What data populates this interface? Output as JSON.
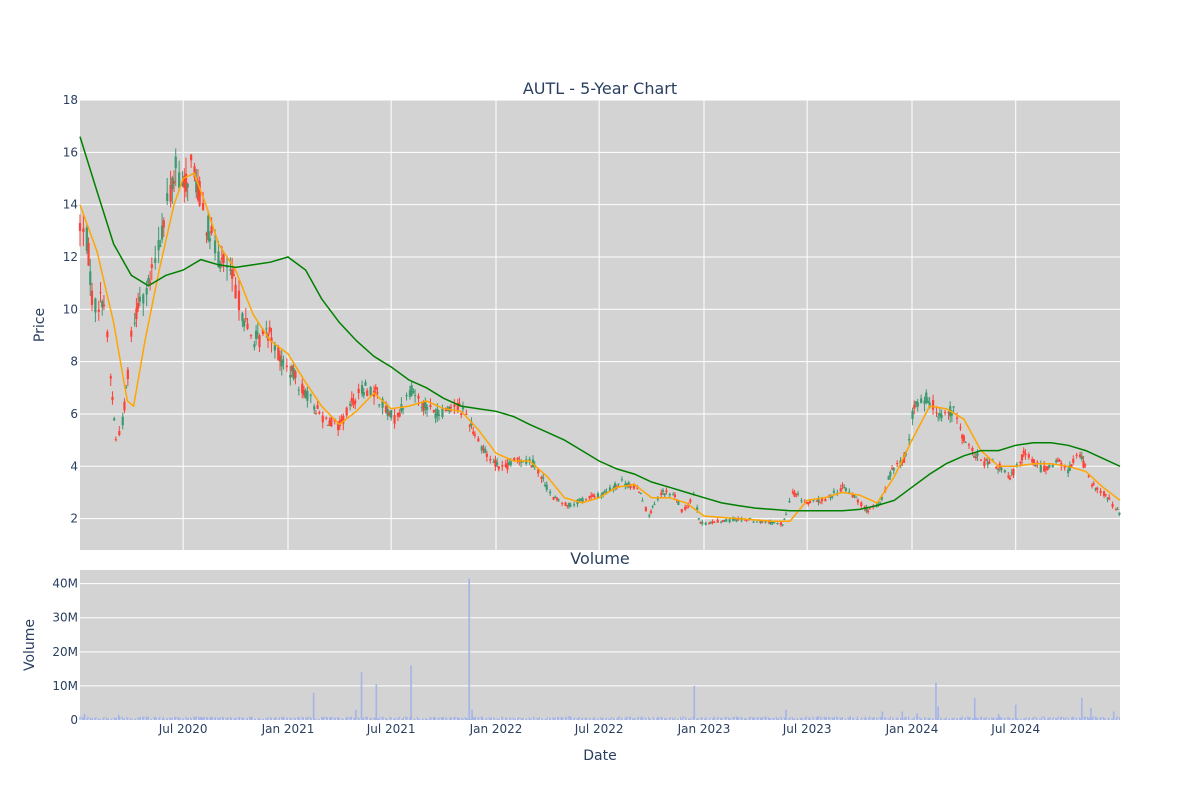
{
  "chart_data": [
    {
      "type": "candlestick",
      "title": "AUTL - 5-Year Chart",
      "ylabel": "Price",
      "ylim": [
        0.8,
        18
      ],
      "yticks": [
        2,
        4,
        6,
        8,
        10,
        12,
        14,
        16,
        18
      ],
      "xlim": [
        "2020-01-02",
        "2024-12-31"
      ],
      "grid": true,
      "colors": {
        "background": "#d3d3d3",
        "up": "#3d9970",
        "down": "#ff4136",
        "ma_short": "#ffa500",
        "ma_long": "#008000"
      },
      "price_path": [
        [
          "2020-01-02",
          13.2
        ],
        [
          "2020-01-15",
          12.6
        ],
        [
          "2020-01-25",
          10.0
        ],
        [
          "2020-02-12",
          10.5
        ],
        [
          "2020-02-22",
          8.2
        ],
        [
          "2020-03-05",
          5.0
        ],
        [
          "2020-03-18",
          5.8
        ],
        [
          "2020-04-01",
          9.0
        ],
        [
          "2020-04-15",
          10.5
        ],
        [
          "2020-05-01",
          10.8
        ],
        [
          "2020-05-20",
          12.5
        ],
        [
          "2020-06-05",
          14.2
        ],
        [
          "2020-06-20",
          15.5
        ],
        [
          "2020-07-01",
          14.5
        ],
        [
          "2020-07-15",
          15.6
        ],
        [
          "2020-08-01",
          14.2
        ],
        [
          "2020-08-15",
          13.0
        ],
        [
          "2020-09-01",
          12.0
        ],
        [
          "2020-09-20",
          11.5
        ],
        [
          "2020-10-05",
          10.5
        ],
        [
          "2020-10-25",
          9.0
        ],
        [
          "2020-11-10",
          8.8
        ],
        [
          "2020-12-01",
          9.2
        ],
        [
          "2020-12-20",
          8.0
        ],
        [
          "2021-01-10",
          7.5
        ],
        [
          "2021-02-01",
          6.8
        ],
        [
          "2021-03-01",
          5.9
        ],
        [
          "2021-04-01",
          5.5
        ],
        [
          "2021-04-25",
          6.5
        ],
        [
          "2021-05-15",
          7.0
        ],
        [
          "2021-06-05",
          6.8
        ],
        [
          "2021-06-25",
          6.0
        ],
        [
          "2021-07-10",
          5.8
        ],
        [
          "2021-08-05",
          7.0
        ],
        [
          "2021-08-25",
          6.4
        ],
        [
          "2021-09-20",
          6.0
        ],
        [
          "2021-10-20",
          6.4
        ],
        [
          "2021-11-10",
          6.0
        ],
        [
          "2021-12-01",
          5.0
        ],
        [
          "2021-12-20",
          4.3
        ],
        [
          "2022-01-15",
          3.9
        ],
        [
          "2022-02-10",
          4.3
        ],
        [
          "2022-03-10",
          4.1
        ],
        [
          "2022-04-10",
          2.8
        ],
        [
          "2022-05-10",
          2.5
        ],
        [
          "2022-06-10",
          2.8
        ],
        [
          "2022-07-05",
          2.9
        ],
        [
          "2022-08-10",
          3.4
        ],
        [
          "2022-09-10",
          3.1
        ],
        [
          "2022-09-25",
          2.1
        ],
        [
          "2022-10-20",
          3.0
        ],
        [
          "2022-11-10",
          2.9
        ],
        [
          "2022-11-25",
          2.2
        ],
        [
          "2022-12-15",
          3.0
        ],
        [
          "2022-12-25",
          1.8
        ],
        [
          "2023-02-01",
          1.9
        ],
        [
          "2023-03-10",
          2.0
        ],
        [
          "2023-04-10",
          1.9
        ],
        [
          "2023-05-20",
          1.8
        ],
        [
          "2023-06-05",
          3.0
        ],
        [
          "2023-07-01",
          2.6
        ],
        [
          "2023-08-01",
          2.7
        ],
        [
          "2023-09-01",
          3.2
        ],
        [
          "2023-09-25",
          2.8
        ],
        [
          "2023-10-15",
          2.3
        ],
        [
          "2023-11-05",
          2.5
        ],
        [
          "2023-11-25",
          3.8
        ],
        [
          "2023-12-20",
          4.3
        ],
        [
          "2024-01-05",
          6.3
        ],
        [
          "2024-01-25",
          6.6
        ],
        [
          "2024-02-20",
          6.0
        ],
        [
          "2024-03-15",
          6.1
        ],
        [
          "2024-04-05",
          4.8
        ],
        [
          "2024-05-01",
          4.2
        ],
        [
          "2024-06-01",
          4.0
        ],
        [
          "2024-06-20",
          3.5
        ],
        [
          "2024-07-15",
          4.5
        ],
        [
          "2024-08-15",
          3.9
        ],
        [
          "2024-09-15",
          4.2
        ],
        [
          "2024-10-01",
          3.8
        ],
        [
          "2024-10-20",
          4.6
        ],
        [
          "2024-11-10",
          3.3
        ],
        [
          "2024-12-01",
          3.0
        ],
        [
          "2024-12-31",
          2.2
        ]
      ],
      "ma_short": [
        [
          "2020-01-02",
          14.0
        ],
        [
          "2020-02-01",
          12.2
        ],
        [
          "2020-03-01",
          9.5
        ],
        [
          "2020-03-25",
          6.5
        ],
        [
          "2020-04-05",
          6.3
        ],
        [
          "2020-04-25",
          8.8
        ],
        [
          "2020-05-20",
          11.5
        ],
        [
          "2020-06-15",
          14.0
        ],
        [
          "2020-07-01",
          15.0
        ],
        [
          "2020-07-20",
          15.2
        ],
        [
          "2020-08-10",
          14.0
        ],
        [
          "2020-09-01",
          12.5
        ],
        [
          "2020-10-01",
          11.5
        ],
        [
          "2020-11-01",
          9.8
        ],
        [
          "2020-12-01",
          8.8
        ],
        [
          "2021-01-01",
          8.3
        ],
        [
          "2021-02-01",
          7.2
        ],
        [
          "2021-03-01",
          6.3
        ],
        [
          "2021-04-01",
          5.6
        ],
        [
          "2021-05-01",
          6.1
        ],
        [
          "2021-06-01",
          6.8
        ],
        [
          "2021-07-01",
          6.2
        ],
        [
          "2021-08-01",
          6.3
        ],
        [
          "2021-09-01",
          6.5
        ],
        [
          "2021-10-01",
          6.2
        ],
        [
          "2021-11-01",
          6.1
        ],
        [
          "2021-12-01",
          5.4
        ],
        [
          "2022-01-01",
          4.5
        ],
        [
          "2022-02-01",
          4.2
        ],
        [
          "2022-03-01",
          4.2
        ],
        [
          "2022-04-01",
          3.6
        ],
        [
          "2022-05-01",
          2.8
        ],
        [
          "2022-06-01",
          2.6
        ],
        [
          "2022-07-01",
          2.8
        ],
        [
          "2022-08-01",
          3.2
        ],
        [
          "2022-09-01",
          3.3
        ],
        [
          "2022-10-01",
          2.8
        ],
        [
          "2022-11-01",
          2.8
        ],
        [
          "2022-12-01",
          2.6
        ],
        [
          "2023-01-01",
          2.1
        ],
        [
          "2023-03-01",
          2.0
        ],
        [
          "2023-05-01",
          1.9
        ],
        [
          "2023-06-01",
          1.9
        ],
        [
          "2023-07-01",
          2.7
        ],
        [
          "2023-08-01",
          2.8
        ],
        [
          "2023-09-01",
          3.0
        ],
        [
          "2023-10-01",
          2.9
        ],
        [
          "2023-11-01",
          2.6
        ],
        [
          "2023-12-01",
          3.6
        ],
        [
          "2024-01-01",
          5.0
        ],
        [
          "2024-02-01",
          6.3
        ],
        [
          "2024-03-01",
          6.2
        ],
        [
          "2024-04-01",
          5.8
        ],
        [
          "2024-05-01",
          4.6
        ],
        [
          "2024-06-01",
          4.0
        ],
        [
          "2024-07-01",
          4.0
        ],
        [
          "2024-08-01",
          4.1
        ],
        [
          "2024-09-01",
          4.1
        ],
        [
          "2024-10-01",
          4.0
        ],
        [
          "2024-11-01",
          3.8
        ],
        [
          "2024-12-01",
          3.2
        ],
        [
          "2024-12-31",
          2.7
        ]
      ],
      "ma_long": [
        [
          "2020-01-02",
          16.6
        ],
        [
          "2020-02-01",
          14.5
        ],
        [
          "2020-03-01",
          12.5
        ],
        [
          "2020-04-01",
          11.3
        ],
        [
          "2020-05-01",
          10.9
        ],
        [
          "2020-06-01",
          11.3
        ],
        [
          "2020-07-01",
          11.5
        ],
        [
          "2020-08-01",
          11.9
        ],
        [
          "2020-09-01",
          11.7
        ],
        [
          "2020-10-01",
          11.6
        ],
        [
          "2020-11-01",
          11.7
        ],
        [
          "2020-12-01",
          11.8
        ],
        [
          "2021-01-01",
          12.0
        ],
        [
          "2021-02-01",
          11.5
        ],
        [
          "2021-03-01",
          10.4
        ],
        [
          "2021-04-01",
          9.5
        ],
        [
          "2021-05-01",
          8.8
        ],
        [
          "2021-06-01",
          8.2
        ],
        [
          "2021-07-01",
          7.8
        ],
        [
          "2021-08-01",
          7.3
        ],
        [
          "2021-09-01",
          7.0
        ],
        [
          "2021-10-01",
          6.6
        ],
        [
          "2021-11-01",
          6.3
        ],
        [
          "2021-12-01",
          6.2
        ],
        [
          "2022-01-01",
          6.1
        ],
        [
          "2022-02-01",
          5.9
        ],
        [
          "2022-03-01",
          5.6
        ],
        [
          "2022-04-01",
          5.3
        ],
        [
          "2022-05-01",
          5.0
        ],
        [
          "2022-06-01",
          4.6
        ],
        [
          "2022-07-01",
          4.2
        ],
        [
          "2022-08-01",
          3.9
        ],
        [
          "2022-09-01",
          3.7
        ],
        [
          "2022-10-01",
          3.4
        ],
        [
          "2022-11-01",
          3.2
        ],
        [
          "2022-12-01",
          3.0
        ],
        [
          "2023-01-01",
          2.8
        ],
        [
          "2023-02-01",
          2.6
        ],
        [
          "2023-03-01",
          2.5
        ],
        [
          "2023-04-01",
          2.4
        ],
        [
          "2023-05-01",
          2.35
        ],
        [
          "2023-06-01",
          2.3
        ],
        [
          "2023-07-01",
          2.3
        ],
        [
          "2023-08-01",
          2.3
        ],
        [
          "2023-09-01",
          2.3
        ],
        [
          "2023-10-01",
          2.35
        ],
        [
          "2023-11-01",
          2.5
        ],
        [
          "2023-12-01",
          2.7
        ],
        [
          "2024-01-01",
          3.2
        ],
        [
          "2024-02-01",
          3.7
        ],
        [
          "2024-03-01",
          4.1
        ],
        [
          "2024-04-01",
          4.4
        ],
        [
          "2024-05-01",
          4.6
        ],
        [
          "2024-06-01",
          4.6
        ],
        [
          "2024-07-01",
          4.8
        ],
        [
          "2024-08-01",
          4.9
        ],
        [
          "2024-09-01",
          4.9
        ],
        [
          "2024-10-01",
          4.8
        ],
        [
          "2024-11-01",
          4.6
        ],
        [
          "2024-12-01",
          4.3
        ],
        [
          "2024-12-31",
          4.0
        ]
      ]
    },
    {
      "type": "bar",
      "title": "Volume",
      "xlabel": "Date",
      "ylabel": "Volume",
      "ylim": [
        0,
        44000000
      ],
      "yticks": [
        0,
        10000000,
        20000000,
        30000000,
        40000000
      ],
      "ytick_labels": [
        "0",
        "10M",
        "20M",
        "30M",
        "40M"
      ],
      "x_tick_dates": [
        "2020-07-01",
        "2021-01-01",
        "2021-07-01",
        "2022-01-01",
        "2022-07-01",
        "2023-01-01",
        "2023-07-01",
        "2024-01-01",
        "2024-07-01"
      ],
      "x_tick_labels": [
        "Jul 2020",
        "Jan 2021",
        "Jul 2021",
        "Jan 2022",
        "Jul 2022",
        "Jan 2023",
        "Jul 2023",
        "Jan 2024",
        "Jul 2024"
      ],
      "bar_color": "#a5b4e8",
      "volume_base": 600000,
      "volume_spikes": [
        [
          "2020-01-10",
          1800000
        ],
        [
          "2020-03-10",
          1500000
        ],
        [
          "2020-08-01",
          900000
        ],
        [
          "2021-02-15",
          8000000
        ],
        [
          "2021-04-30",
          3000000
        ],
        [
          "2021-05-10",
          14000000
        ],
        [
          "2021-06-05",
          10500000
        ],
        [
          "2021-08-05",
          16000000
        ],
        [
          "2021-11-15",
          41500000
        ],
        [
          "2021-11-20",
          3000000
        ],
        [
          "2022-05-10",
          1200000
        ],
        [
          "2022-12-15",
          10000000
        ],
        [
          "2023-05-25",
          3000000
        ],
        [
          "2023-11-10",
          2500000
        ],
        [
          "2023-12-15",
          2500000
        ],
        [
          "2024-01-10",
          2000000
        ],
        [
          "2024-02-12",
          11000000
        ],
        [
          "2024-02-16",
          4000000
        ],
        [
          "2024-04-20",
          6500000
        ],
        [
          "2024-06-01",
          1800000
        ],
        [
          "2024-07-01",
          4500000
        ],
        [
          "2024-10-25",
          6500000
        ],
        [
          "2024-11-10",
          3500000
        ],
        [
          "2024-12-20",
          2500000
        ]
      ]
    }
  ]
}
